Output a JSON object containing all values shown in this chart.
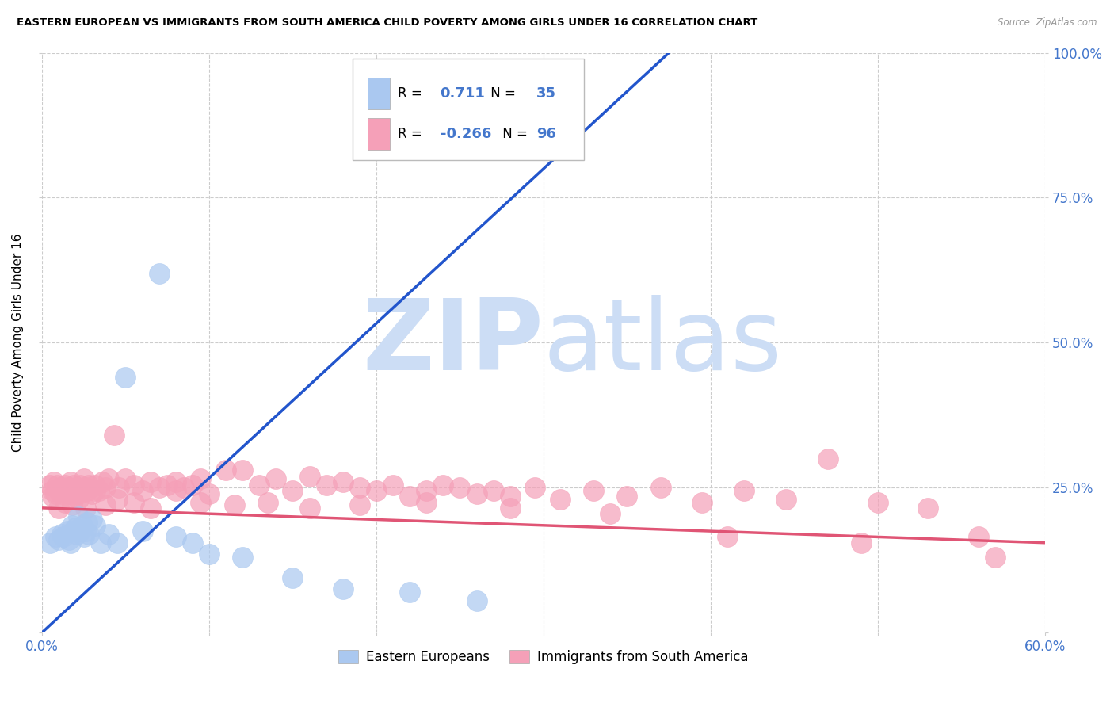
{
  "title": "EASTERN EUROPEAN VS IMMIGRANTS FROM SOUTH AMERICA CHILD POVERTY AMONG GIRLS UNDER 16 CORRELATION CHART",
  "source": "Source: ZipAtlas.com",
  "ylabel": "Child Poverty Among Girls Under 16",
  "xlim": [
    0.0,
    0.6
  ],
  "ylim": [
    0.0,
    1.0
  ],
  "xticks": [
    0.0,
    0.1,
    0.2,
    0.3,
    0.4,
    0.5,
    0.6
  ],
  "xticklabels": [
    "0.0%",
    "",
    "",
    "",
    "",
    "",
    "60.0%"
  ],
  "yticks": [
    0.0,
    0.25,
    0.5,
    0.75,
    1.0
  ],
  "yticklabels_right": [
    "",
    "25.0%",
    "50.0%",
    "75.0%",
    "100.0%"
  ],
  "blue_R": 0.711,
  "blue_N": 35,
  "pink_R": -0.266,
  "pink_N": 96,
  "blue_color": "#aac8f0",
  "pink_color": "#f5a0b8",
  "blue_line_color": "#2255cc",
  "pink_line_color": "#e05575",
  "watermark_zip": "ZIP",
  "watermark_atlas": "atlas",
  "watermark_color": "#ccddf5",
  "background_color": "#ffffff",
  "tick_color": "#4477cc",
  "grid_color": "#cccccc",
  "blue_x": [
    0.005,
    0.008,
    0.01,
    0.012,
    0.013,
    0.015,
    0.016,
    0.017,
    0.018,
    0.019,
    0.02,
    0.021,
    0.022,
    0.023,
    0.024,
    0.025,
    0.026,
    0.027,
    0.028,
    0.03,
    0.032,
    0.035,
    0.04,
    0.045,
    0.05,
    0.06,
    0.07,
    0.08,
    0.09,
    0.1,
    0.12,
    0.15,
    0.18,
    0.22,
    0.26
  ],
  "blue_y": [
    0.155,
    0.165,
    0.16,
    0.17,
    0.165,
    0.175,
    0.16,
    0.155,
    0.185,
    0.175,
    0.18,
    0.17,
    0.2,
    0.175,
    0.185,
    0.165,
    0.175,
    0.19,
    0.17,
    0.195,
    0.185,
    0.155,
    0.17,
    0.155,
    0.44,
    0.175,
    0.62,
    0.165,
    0.155,
    0.135,
    0.13,
    0.095,
    0.075,
    0.07,
    0.055
  ],
  "pink_x": [
    0.005,
    0.006,
    0.007,
    0.008,
    0.009,
    0.01,
    0.011,
    0.012,
    0.013,
    0.014,
    0.015,
    0.016,
    0.017,
    0.018,
    0.019,
    0.02,
    0.021,
    0.022,
    0.023,
    0.024,
    0.025,
    0.026,
    0.027,
    0.028,
    0.03,
    0.032,
    0.034,
    0.036,
    0.038,
    0.04,
    0.043,
    0.046,
    0.05,
    0.055,
    0.06,
    0.065,
    0.07,
    0.075,
    0.08,
    0.085,
    0.09,
    0.095,
    0.1,
    0.11,
    0.12,
    0.13,
    0.14,
    0.15,
    0.16,
    0.17,
    0.18,
    0.19,
    0.2,
    0.21,
    0.22,
    0.23,
    0.24,
    0.25,
    0.26,
    0.27,
    0.28,
    0.295,
    0.31,
    0.33,
    0.35,
    0.37,
    0.395,
    0.42,
    0.445,
    0.47,
    0.5,
    0.53,
    0.56,
    0.006,
    0.01,
    0.014,
    0.018,
    0.022,
    0.026,
    0.032,
    0.038,
    0.045,
    0.055,
    0.065,
    0.08,
    0.095,
    0.115,
    0.135,
    0.16,
    0.19,
    0.23,
    0.28,
    0.34,
    0.41,
    0.49,
    0.57
  ],
  "pink_y": [
    0.255,
    0.245,
    0.26,
    0.24,
    0.255,
    0.245,
    0.25,
    0.24,
    0.245,
    0.255,
    0.25,
    0.24,
    0.26,
    0.245,
    0.255,
    0.24,
    0.25,
    0.24,
    0.255,
    0.245,
    0.265,
    0.25,
    0.245,
    0.255,
    0.24,
    0.255,
    0.245,
    0.26,
    0.25,
    0.265,
    0.34,
    0.25,
    0.265,
    0.255,
    0.245,
    0.26,
    0.25,
    0.255,
    0.26,
    0.25,
    0.255,
    0.265,
    0.24,
    0.28,
    0.28,
    0.255,
    0.265,
    0.245,
    0.27,
    0.255,
    0.26,
    0.25,
    0.245,
    0.255,
    0.235,
    0.245,
    0.255,
    0.25,
    0.24,
    0.245,
    0.235,
    0.25,
    0.23,
    0.245,
    0.235,
    0.25,
    0.225,
    0.245,
    0.23,
    0.3,
    0.225,
    0.215,
    0.165,
    0.235,
    0.215,
    0.225,
    0.22,
    0.23,
    0.215,
    0.245,
    0.22,
    0.23,
    0.225,
    0.215,
    0.245,
    0.225,
    0.22,
    0.225,
    0.215,
    0.22,
    0.225,
    0.215,
    0.205,
    0.165,
    0.155,
    0.13
  ]
}
